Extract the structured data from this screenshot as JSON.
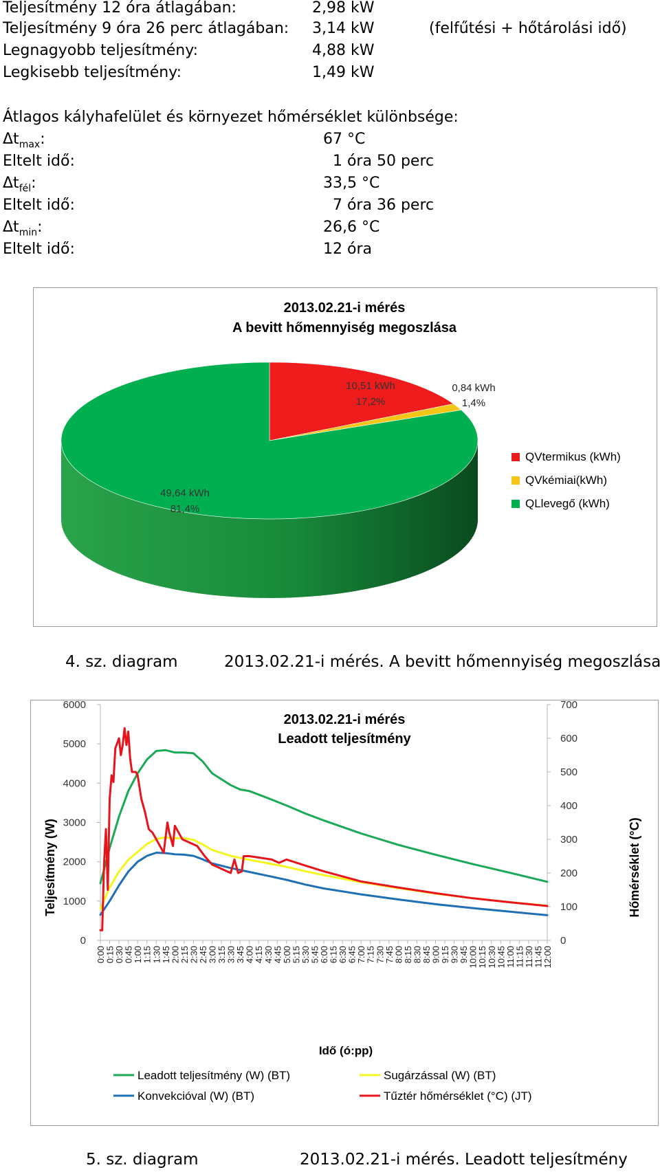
{
  "stats": {
    "power_rows": [
      {
        "label": "Teljesítmény 12 óra átlagában:",
        "value": "2,98 kW",
        "note": ""
      },
      {
        "label": "Teljesítmény 9 óra 26 perc átlagában:",
        "value": "3,14 kW",
        "note": "(felfűtési + hőtárolási idő)"
      },
      {
        "label": "Legnagyobb teljesítmény:",
        "value": "4,88 kW",
        "note": ""
      },
      {
        "label": "Legkisebb teljesítmény:",
        "value": "1,49 kW",
        "note": ""
      }
    ],
    "diff_heading": "Átlagos kályhafelület és környezet hőmérséklet különbsége:",
    "delta_rows": [
      {
        "prefix": "Δt",
        "sub": "max",
        "suffix": ":",
        "value": "67 °C"
      },
      {
        "prefix": "Eltelt idő:",
        "sub": "",
        "suffix": "",
        "value": "  1 óra 50 perc"
      },
      {
        "prefix": "Δt",
        "sub": "fél",
        "suffix": ":",
        "value": "33,5 °C"
      },
      {
        "prefix": "Eltelt idő:",
        "sub": "",
        "suffix": "",
        "value": "  7 óra 36 perc"
      },
      {
        "prefix": "Δt",
        "sub": "min",
        "suffix": ":",
        "value": "26,6 °C"
      },
      {
        "prefix": "Eltelt idő:",
        "sub": "",
        "suffix": "",
        "value": "12 óra"
      }
    ]
  },
  "chart_data": [
    {
      "type": "pie",
      "title": "2013.02.21-i mérés",
      "subtitle": "A bevitt hőmennyiség megoszlása",
      "slices": [
        {
          "name": "QVtermikus  (kWh)",
          "value": 10.51,
          "value_label": "10,51 kWh",
          "percent_label": "17,2%",
          "color": "#ee1c1c"
        },
        {
          "name": "QVkémiai(kWh)",
          "value": 0.84,
          "value_label": "0,84 kWh",
          "percent_label": "1,4%",
          "color": "#f5c518"
        },
        {
          "name": "QLlevegő (kWh)",
          "value": 49.64,
          "value_label": "49,64 kWh",
          "percent_label": "81,4%",
          "color": "#00b050"
        }
      ],
      "legend_position": "right",
      "caption_number": "4. sz. diagram",
      "caption_text": "2013.02.21-i mérés. A bevitt hőmennyiség megoszlása"
    },
    {
      "type": "line",
      "title": "2013.02.21-i mérés",
      "subtitle": "Leadott teljesítmény",
      "xlabel": "Idő (ó:pp)",
      "ylabel": "Teljesítmény (W)",
      "y2label": "Hőmérséklet (°C)",
      "ylim": [
        0,
        6000
      ],
      "y2lim": [
        0,
        700
      ],
      "yticks": [
        "0",
        "1000",
        "2000",
        "3000",
        "4000",
        "5000",
        "6000"
      ],
      "y2ticks": [
        "0",
        "100",
        "200",
        "300",
        "400",
        "500",
        "600",
        "700"
      ],
      "xlim_hours": [
        0,
        12
      ],
      "xticks": [
        "0:00",
        "0:15",
        "0:30",
        "0:45",
        "1:00",
        "1:15",
        "1:30",
        "1:45",
        "2:00",
        "2:15",
        "2:30",
        "2:45",
        "3:00",
        "3:15",
        "3:30",
        "3:45",
        "4:00",
        "4:15",
        "4:30",
        "4:45",
        "5:00",
        "5:15",
        "5:30",
        "5:45",
        "6:00",
        "6:15",
        "6:30",
        "6:45",
        "7:00",
        "7:15",
        "7:30",
        "7:45",
        "8:00",
        "8:15",
        "8:30",
        "8:45",
        "9:00",
        "9:15",
        "9:30",
        "9:45",
        "10:00",
        "10:15",
        "10:30",
        "10:45",
        "11:00",
        "11:15",
        "11:30",
        "11:45",
        "12:00"
      ],
      "grid": false,
      "legend_position": "bottom",
      "series": [
        {
          "name": "Leadott teljesítmény (W) (BT)",
          "axis": "left",
          "color": "#1aaa55",
          "x": [
            0,
            0.25,
            0.5,
            0.75,
            1.0,
            1.25,
            1.5,
            1.75,
            2.0,
            2.25,
            2.5,
            2.75,
            3.0,
            3.25,
            3.5,
            3.75,
            4.0,
            4.5,
            5.0,
            5.5,
            6.0,
            7.0,
            8.0,
            9.0,
            10.0,
            11.0,
            12.0
          ],
          "y": [
            1450,
            2350,
            3150,
            3800,
            4250,
            4600,
            4820,
            4840,
            4780,
            4780,
            4760,
            4550,
            4250,
            4100,
            3950,
            3840,
            3800,
            3620,
            3430,
            3230,
            3050,
            2720,
            2430,
            2180,
            1940,
            1720,
            1490
          ]
        },
        {
          "name": "Sugárzással (W) (BT)",
          "axis": "left",
          "color": "#f5f51e",
          "x": [
            0,
            0.25,
            0.5,
            0.75,
            1.0,
            1.25,
            1.5,
            1.75,
            2.0,
            2.25,
            2.5,
            2.75,
            3.0,
            3.5,
            4.0,
            4.5,
            5.0,
            5.5,
            6.0,
            7.0,
            8.0,
            9.0,
            10.0,
            11.0,
            12.0
          ],
          "y": [
            800,
            1350,
            1750,
            2050,
            2250,
            2450,
            2580,
            2620,
            2600,
            2600,
            2560,
            2440,
            2300,
            2150,
            2050,
            1960,
            1870,
            1760,
            1660,
            1480,
            1330,
            1190,
            1070,
            970,
            880
          ]
        },
        {
          "name": "Konvekcióval (W) (BT)",
          "axis": "left",
          "color": "#1f6fb5",
          "x": [
            0,
            0.25,
            0.5,
            0.75,
            1.0,
            1.25,
            1.5,
            1.75,
            2.0,
            2.25,
            2.5,
            2.75,
            3.0,
            3.5,
            4.0,
            4.5,
            5.0,
            5.5,
            6.0,
            7.0,
            8.0,
            9.0,
            10.0,
            11.0,
            12.0
          ],
          "y": [
            650,
            1000,
            1400,
            1750,
            2000,
            2150,
            2230,
            2220,
            2190,
            2180,
            2150,
            2060,
            1960,
            1840,
            1740,
            1640,
            1540,
            1420,
            1320,
            1170,
            1040,
            920,
            820,
            730,
            640
          ]
        },
        {
          "name": "Tűztér hőmérséklet (°C) (JT)",
          "axis": "right",
          "color": "#e8141c",
          "x": [
            0,
            0.05,
            0.1,
            0.15,
            0.2,
            0.25,
            0.3,
            0.35,
            0.4,
            0.5,
            0.55,
            0.6,
            0.65,
            0.7,
            0.75,
            0.8,
            0.85,
            0.9,
            0.95,
            1.0,
            1.1,
            1.2,
            1.3,
            1.4,
            1.5,
            1.6,
            1.7,
            1.8,
            1.85,
            1.95,
            2.0,
            2.1,
            2.2,
            2.4,
            2.6,
            2.8,
            3.0,
            3.2,
            3.4,
            3.5,
            3.6,
            3.7,
            3.8,
            3.85,
            4.0,
            4.3,
            4.6,
            4.8,
            5.0,
            5.5,
            6.0,
            6.5,
            7.0,
            8.0,
            9.0,
            10.0,
            11.0,
            12.0
          ],
          "y": [
            30,
            30,
            230,
            330,
            150,
            420,
            490,
            470,
            570,
            600,
            550,
            580,
            630,
            580,
            620,
            540,
            500,
            500,
            500,
            490,
            420,
            380,
            330,
            320,
            300,
            280,
            260,
            350,
            320,
            280,
            340,
            320,
            300,
            290,
            280,
            250,
            225,
            215,
            205,
            200,
            240,
            200,
            205,
            250,
            250,
            245,
            240,
            230,
            240,
            222,
            205,
            190,
            175,
            157,
            140,
            125,
            113,
            102
          ]
        }
      ],
      "caption_number": "5. sz. diagram",
      "caption_text": "2013.02.21-i mérés. Leadott teljesítmény"
    }
  ]
}
